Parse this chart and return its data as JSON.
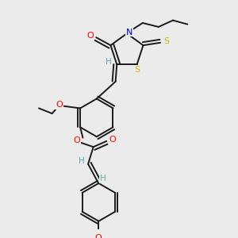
{
  "bg_color": "#ebebeb",
  "bond_color": "#1a1a1a",
  "atom_colors": {
    "O": "#ff0000",
    "N": "#0000cc",
    "S": "#ccbb00",
    "H": "#5faaaa",
    "C": "#1a1a1a"
  },
  "figsize": [
    3.0,
    3.0
  ],
  "dpi": 100
}
